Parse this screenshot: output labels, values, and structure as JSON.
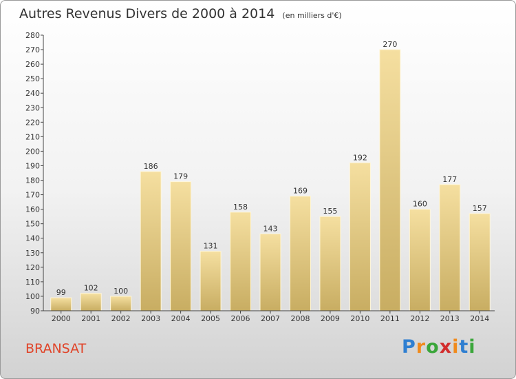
{
  "title": "Autres Revenus Divers de 2000 à 2014",
  "subtitle": "(en milliers d'€)",
  "commune": "BRANSAT",
  "logo": {
    "letters": [
      "P",
      "r",
      "o",
      "x",
      "i",
      "t",
      "i"
    ],
    "colors": [
      "#2f7fd1",
      "#f08a1c",
      "#3aa63a",
      "#d22d2d",
      "#f08a1c",
      "#2f7fd1",
      "#3aa63a"
    ]
  },
  "colors": {
    "bar_light": "#f5dfa0",
    "bar_dark": "#c8ad62",
    "title": "#333333",
    "commune": "#e0452a"
  },
  "chart_data": {
    "type": "bar",
    "categories": [
      "2000",
      "2001",
      "2002",
      "2003",
      "2004",
      "2005",
      "2006",
      "2007",
      "2008",
      "2009",
      "2010",
      "2011",
      "2012",
      "2013",
      "2014"
    ],
    "values": [
      99,
      102,
      100,
      186,
      179,
      131,
      158,
      143,
      169,
      155,
      192,
      270,
      160,
      177,
      157
    ],
    "title": "Autres Revenus Divers de 2000 à 2014",
    "xlabel": "",
    "ylabel": "",
    "ylim": [
      90,
      280
    ],
    "ytick_step": 10,
    "grid": false,
    "data_labels": true
  }
}
